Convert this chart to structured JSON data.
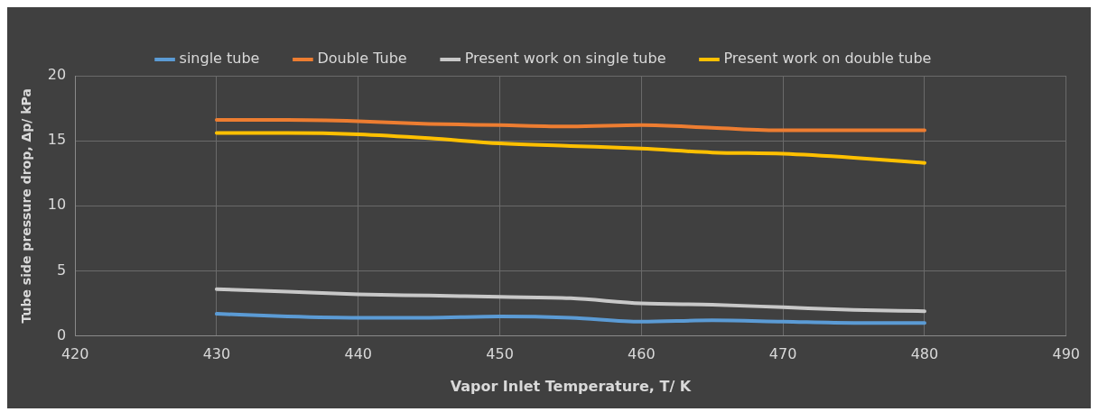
{
  "chart_data": {
    "type": "line",
    "xlabel": "Vapor Inlet Temperature, T/ K",
    "ylabel": "Tube side pressure drop, Δp/ kPa",
    "x": [
      430,
      435,
      440,
      445,
      450,
      455,
      460,
      465,
      470,
      475,
      480
    ],
    "series": [
      {
        "name": "single tube",
        "color": "#5b9bd5",
        "values": [
          1.7,
          1.5,
          1.4,
          1.4,
          1.5,
          1.4,
          1.1,
          1.2,
          1.1,
          1.0,
          1.0
        ]
      },
      {
        "name": "Double Tube",
        "color": "#ed7d31",
        "values": [
          16.6,
          16.6,
          16.5,
          16.3,
          16.2,
          16.1,
          16.2,
          16.0,
          15.8,
          15.8,
          15.8
        ]
      },
      {
        "name": "Present work on single tube",
        "color": "#c8c8c8",
        "values": [
          3.6,
          3.4,
          3.2,
          3.1,
          3.0,
          2.9,
          2.5,
          2.4,
          2.2,
          2.0,
          1.9
        ]
      },
      {
        "name": "Present work on double tube",
        "color": "#ffc000",
        "values": [
          15.6,
          15.6,
          15.5,
          15.2,
          14.8,
          14.6,
          14.4,
          14.1,
          14.0,
          13.7,
          13.3
        ]
      }
    ],
    "xlim": [
      420,
      490
    ],
    "xticks": [
      420,
      430,
      440,
      450,
      460,
      470,
      480,
      490
    ],
    "ylim": [
      0,
      20
    ],
    "yticks": [
      0,
      5,
      10,
      15,
      20
    ],
    "grid": true,
    "legend": "top",
    "marker": "none",
    "line_style": "solid"
  }
}
